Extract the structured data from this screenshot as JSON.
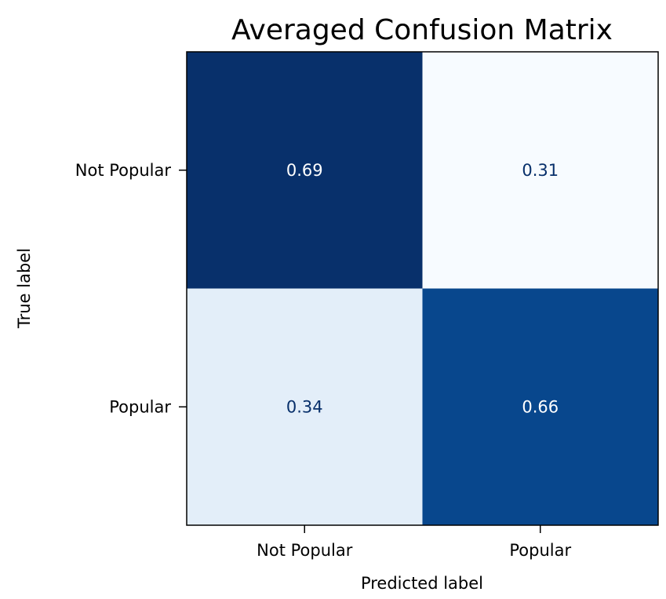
{
  "chart_data": {
    "type": "heatmap",
    "title": "Averaged Confusion Matrix",
    "xlabel": "Predicted label",
    "ylabel": "True label",
    "x_categories": [
      "Not Popular",
      "Popular"
    ],
    "y_categories": [
      "Not Popular",
      "Popular"
    ],
    "values": [
      [
        0.69,
        0.31
      ],
      [
        0.34,
        0.66
      ]
    ],
    "value_labels": [
      [
        "0.69",
        "0.31"
      ],
      [
        "0.34",
        "0.66"
      ]
    ],
    "colormap": "Blues",
    "cell_colors": [
      [
        "#08306b",
        "#f7fbff"
      ],
      [
        "#e3eef9",
        "#08478d"
      ]
    ],
    "text_colors": [
      [
        "#ffffff",
        "#08306b"
      ],
      [
        "#08306b",
        "#ffffff"
      ]
    ],
    "colorbar": false,
    "grid": false
  }
}
